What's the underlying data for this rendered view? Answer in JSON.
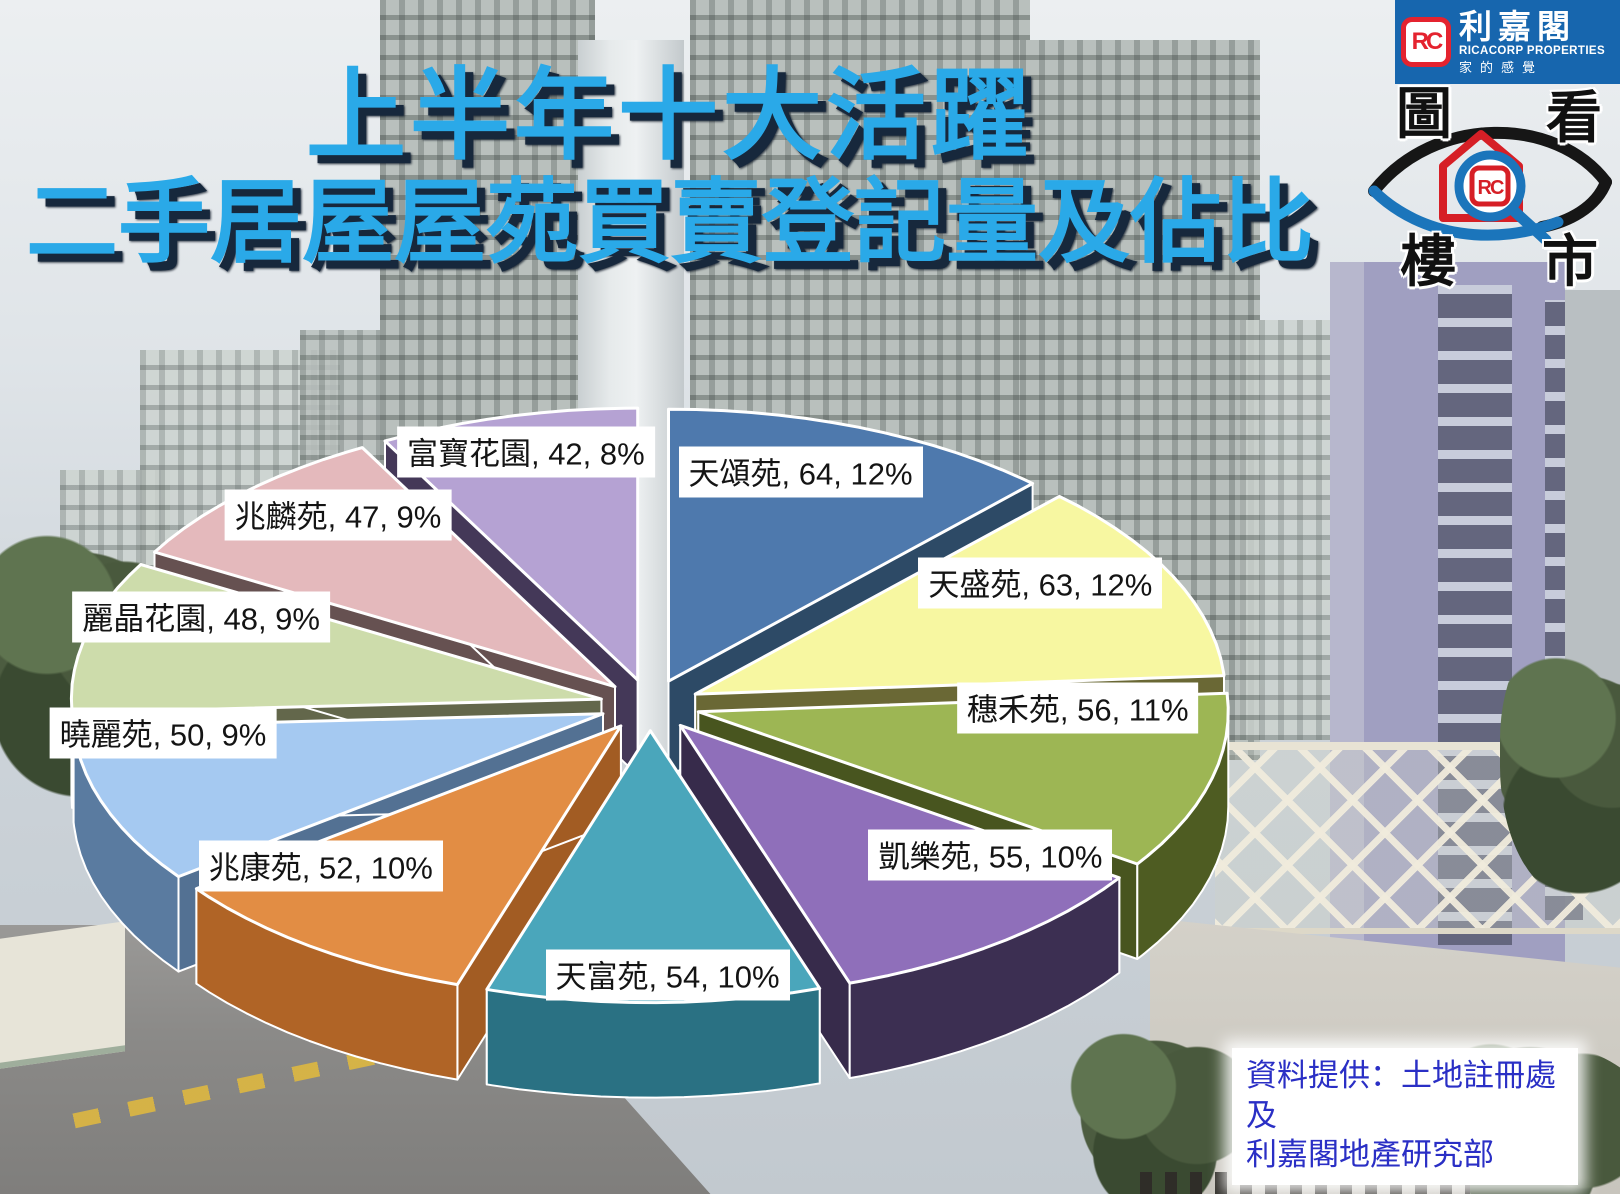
{
  "title": {
    "line1": "上半年十大活躍",
    "line2": "二手居屋屋苑買賣登記量及佔比",
    "color": "#2aa9e8"
  },
  "brand": {
    "monogram": "RC",
    "name_cn": "利嘉閣",
    "name_en": "RICACORP PROPERTIES",
    "tagline": "家的感覺",
    "banner_color": "#1766ae"
  },
  "stamp": {
    "top_left": "圖",
    "top_right": "看",
    "bottom_left": "樓",
    "bottom_right": "市"
  },
  "source_note": {
    "line1": "資料提供：土地註冊處及",
    "line2": "利嘉閣地產研究部",
    "text_color": "#2a2fc5"
  },
  "chart_data": {
    "type": "pie",
    "style": "3d-exploded",
    "start_angle_deg": 0,
    "direction": "clockwise",
    "label_format": "{name}, {registrations}, {share}",
    "slices": [
      {
        "name": "天頌苑",
        "value": 64,
        "percent": "12%",
        "color_top": "#4e79ad",
        "color_side": "#31506f"
      },
      {
        "name": "天盛苑",
        "value": 63,
        "percent": "12%",
        "color_top": "#f7f7a1",
        "color_side": "#73713a"
      },
      {
        "name": "穗禾苑",
        "value": 56,
        "percent": "11%",
        "color_top": "#9db654",
        "color_side": "#4e5c22"
      },
      {
        "name": "凱樂苑",
        "value": 55,
        "percent": "10%",
        "color_top": "#8f6fba",
        "color_side": "#3c2f52"
      },
      {
        "name": "天富苑",
        "value": 54,
        "percent": "10%",
        "color_top": "#4aa6bb",
        "color_side": "#2a7183"
      },
      {
        "name": "兆康苑",
        "value": 52,
        "percent": "10%",
        "color_top": "#e28d44",
        "color_side": "#b06426"
      },
      {
        "name": "曉麗苑",
        "value": 50,
        "percent": "9%",
        "color_top": "#a5c9f1",
        "color_side": "#5a7ba0"
      },
      {
        "name": "麗晶花園",
        "value": 48,
        "percent": "9%",
        "color_top": "#cddcab",
        "color_side": "#6c7052"
      },
      {
        "name": "兆麟苑",
        "value": 47,
        "percent": "9%",
        "color_top": "#e4b9bc",
        "color_side": "#6f5858"
      },
      {
        "name": "富寶花園",
        "value": 42,
        "percent": "8%",
        "color_top": "#b5a2d3",
        "color_side": "#4a3d60"
      }
    ]
  }
}
